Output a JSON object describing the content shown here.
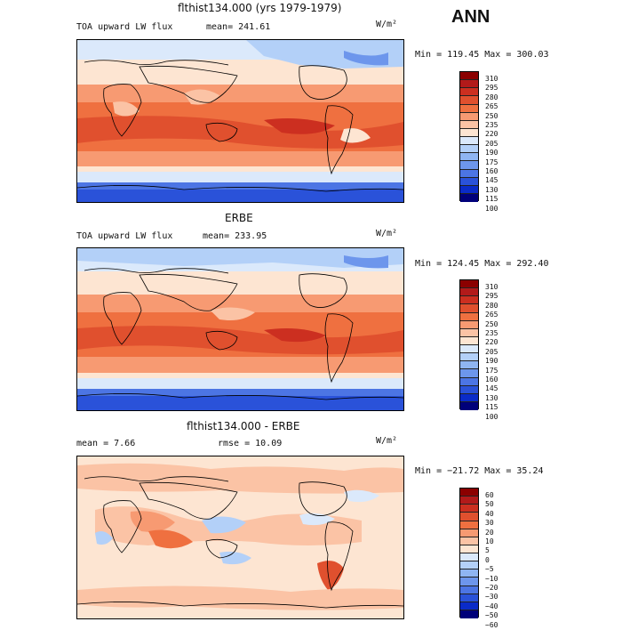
{
  "season": "ANN",
  "unit_label": "W/m²",
  "panels": [
    {
      "title": "flthist134.000 (yrs 1979-1979)",
      "left_label": "TOA upward LW flux",
      "mid_label": "mean= 241.61",
      "minmax": "Min = 119.45 Max = 300.03",
      "colorbar": {
        "levels": [
          "310",
          "295",
          "280",
          "265",
          "250",
          "235",
          "220",
          "205",
          "190",
          "175",
          "160",
          "145",
          "130",
          "115",
          "100"
        ],
        "colors": [
          "#8b0000",
          "#b21a1a",
          "#cc2f20",
          "#e0502e",
          "#ef7040",
          "#f79a72",
          "#fbc3a5",
          "#fde5d2",
          "#dbe9fb",
          "#b3d0f8",
          "#8fb5f2",
          "#6d96ec",
          "#4c75e4",
          "#2a52d9",
          "#0a2bc8",
          "#00007a"
        ]
      }
    },
    {
      "title": "ERBE",
      "left_label": "TOA upward LW flux",
      "mid_label": "mean= 233.95",
      "minmax": "Min = 124.45 Max = 292.40",
      "colorbar": {
        "levels": [
          "310",
          "295",
          "280",
          "265",
          "250",
          "235",
          "220",
          "205",
          "190",
          "175",
          "160",
          "145",
          "130",
          "115",
          "100"
        ],
        "colors": [
          "#8b0000",
          "#b21a1a",
          "#cc2f20",
          "#e0502e",
          "#ef7040",
          "#f79a72",
          "#fbc3a5",
          "#fde5d2",
          "#dbe9fb",
          "#b3d0f8",
          "#8fb5f2",
          "#6d96ec",
          "#4c75e4",
          "#2a52d9",
          "#0a2bc8",
          "#00007a"
        ]
      }
    },
    {
      "title": "flthist134.000 - ERBE",
      "left_label": "mean =   7.66",
      "mid_label": "rmse =   10.09",
      "minmax": "Min = −21.72 Max =  35.24",
      "colorbar": {
        "levels": [
          "60",
          "50",
          "40",
          "30",
          "20",
          "10",
          "5",
          "0",
          "−5",
          "−10",
          "−20",
          "−30",
          "−40",
          "−50",
          "−60"
        ],
        "colors": [
          "#8b0000",
          "#b21a1a",
          "#cc2f20",
          "#e0502e",
          "#ef7040",
          "#f79a72",
          "#fbc3a5",
          "#fde5d2",
          "#dbe9fb",
          "#b3d0f8",
          "#8fb5f2",
          "#6d96ec",
          "#4c75e4",
          "#2a52d9",
          "#0a2bc8",
          "#00007a"
        ]
      }
    }
  ]
}
